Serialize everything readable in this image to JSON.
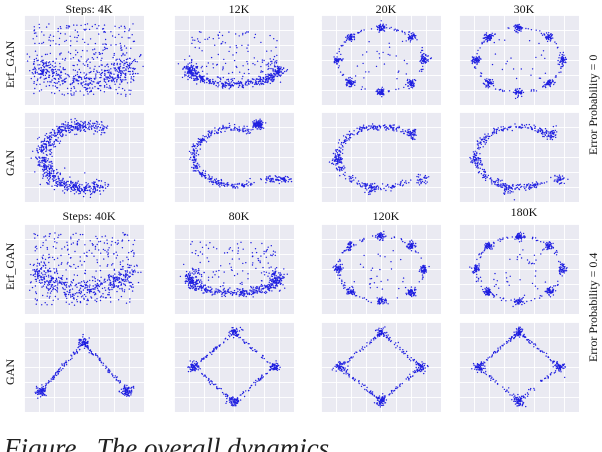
{
  "figure": {
    "caption_fragment": "Figure . The overall dynamics ...",
    "group_labels": [
      "Error Probability = 0",
      "Error Probability = 0.4"
    ],
    "row_labels": [
      "Erf_GAN",
      "GAN",
      "Erf_GAN",
      "GAN"
    ],
    "column_titles_top": [
      "Steps: 4K",
      "12K",
      "20K",
      "30K"
    ],
    "column_titles_bottom": [
      "Steps: 40K",
      "80K",
      "120K",
      "180K"
    ],
    "point_color": "#1f1fe0",
    "panel_bg": "#eaeaf2"
  },
  "chart_data": [
    {
      "type": "scatter",
      "title": "Steps: 4K",
      "row": "Erf_GAN",
      "group": "Error Probability = 0",
      "shape": "bowl-diffuse",
      "approx_points": 700
    },
    {
      "type": "scatter",
      "title": "12K",
      "row": "Erf_GAN",
      "group": "Error Probability = 0",
      "shape": "bowl-with-lobes",
      "approx_points": 600
    },
    {
      "type": "scatter",
      "title": "20K",
      "row": "Erf_GAN",
      "group": "Error Probability = 0",
      "shape": "ring-8-modes",
      "modes": 8,
      "approx_points": 500
    },
    {
      "type": "scatter",
      "title": "30K",
      "row": "Erf_GAN",
      "group": "Error Probability = 0",
      "shape": "ring-8-modes",
      "modes": 8,
      "approx_points": 500
    },
    {
      "type": "scatter",
      "title": "Steps: 4K",
      "row": "GAN",
      "group": "Error Probability = 0",
      "shape": "C-arc-thick",
      "approx_points": 700
    },
    {
      "type": "scatter",
      "title": "12K",
      "row": "GAN",
      "group": "Error Probability = 0",
      "shape": "C-arc",
      "approx_points": 500
    },
    {
      "type": "scatter",
      "title": "20K",
      "row": "GAN",
      "group": "Error Probability = 0",
      "shape": "partial-ring",
      "approx_points": 450
    },
    {
      "type": "scatter",
      "title": "30K",
      "row": "GAN",
      "group": "Error Probability = 0",
      "shape": "partial-ring",
      "approx_points": 450
    },
    {
      "type": "scatter",
      "title": "Steps: 40K",
      "row": "Erf_GAN",
      "group": "Error Probability = 0.4",
      "shape": "bowl-diffuse",
      "approx_points": 700
    },
    {
      "type": "scatter",
      "title": "80K",
      "row": "Erf_GAN",
      "group": "Error Probability = 0.4",
      "shape": "bowl-with-lobes",
      "approx_points": 600
    },
    {
      "type": "scatter",
      "title": "120K",
      "row": "Erf_GAN",
      "group": "Error Probability = 0.4",
      "shape": "ring-8-modes",
      "modes": 8,
      "approx_points": 500
    },
    {
      "type": "scatter",
      "title": "180K",
      "row": "Erf_GAN",
      "group": "Error Probability = 0.4",
      "shape": "ring-8-modes",
      "modes": 8,
      "approx_points": 500
    },
    {
      "type": "scatter",
      "title": "Steps: 40K",
      "row": "GAN",
      "group": "Error Probability = 0.4",
      "shape": "arch-3-modes",
      "modes": 3,
      "approx_points": 350
    },
    {
      "type": "scatter",
      "title": "80K",
      "row": "GAN",
      "group": "Error Probability = 0.4",
      "shape": "diamond-4-modes",
      "modes": 4,
      "approx_points": 400
    },
    {
      "type": "scatter",
      "title": "120K",
      "row": "GAN",
      "group": "Error Probability = 0.4",
      "shape": "diamond-4-modes",
      "modes": 4,
      "approx_points": 400
    },
    {
      "type": "scatter",
      "title": "180K",
      "row": "GAN",
      "group": "Error Probability = 0.4",
      "shape": "diamond-4-modes",
      "modes": 4,
      "approx_points": 400
    }
  ]
}
